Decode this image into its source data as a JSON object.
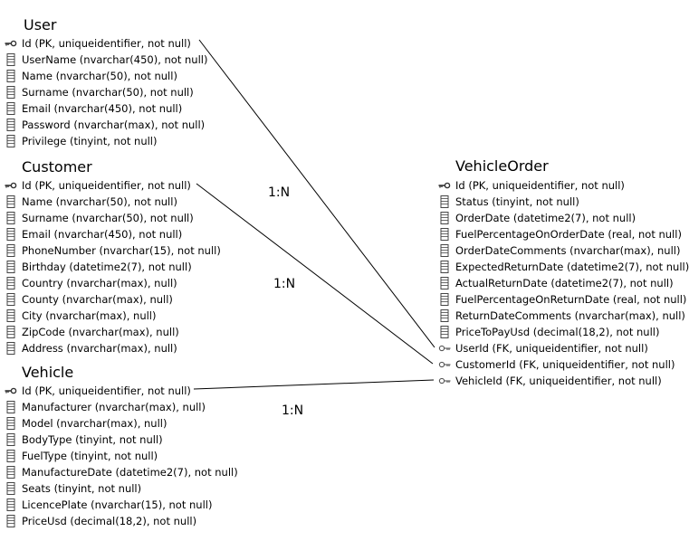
{
  "entities": {
    "user": {
      "title": "User",
      "fields": [
        {
          "text": "Id (PK, uniqueidentifier, not null)",
          "icon": "key-icon"
        },
        {
          "text": "UserName (nvarchar(450), not null)",
          "icon": "column-icon"
        },
        {
          "text": "Name (nvarchar(50), not null)",
          "icon": "column-icon"
        },
        {
          "text": "Surname (nvarchar(50), not null)",
          "icon": "column-icon"
        },
        {
          "text": "Email (nvarchar(450), not null)",
          "icon": "column-icon"
        },
        {
          "text": "Password (nvarchar(max), not null)",
          "icon": "column-icon"
        },
        {
          "text": "Privilege (tinyint, not null)",
          "icon": "column-icon"
        }
      ]
    },
    "customer": {
      "title": "Customer",
      "fields": [
        {
          "text": "Id (PK, uniqueidentifier, not null)",
          "icon": "key-icon"
        },
        {
          "text": "Name (nvarchar(50), not null)",
          "icon": "column-icon"
        },
        {
          "text": "Surname (nvarchar(50), not null)",
          "icon": "column-icon"
        },
        {
          "text": "Email (nvarchar(450), not null)",
          "icon": "column-icon"
        },
        {
          "text": "PhoneNumber (nvarchar(15), not null)",
          "icon": "column-icon"
        },
        {
          "text": "Birthday (datetime2(7), not null)",
          "icon": "column-icon"
        },
        {
          "text": "Country (nvarchar(max), null)",
          "icon": "column-icon"
        },
        {
          "text": "County (nvarchar(max), null)",
          "icon": "column-icon"
        },
        {
          "text": "City (nvarchar(max), null)",
          "icon": "column-icon"
        },
        {
          "text": "ZipCode (nvarchar(max), null)",
          "icon": "column-icon"
        },
        {
          "text": "Address (nvarchar(max), null)",
          "icon": "column-icon"
        }
      ]
    },
    "vehicle": {
      "title": "Vehicle",
      "fields": [
        {
          "text": "Id (PK, uniqueidentifier, not null)",
          "icon": "key-icon"
        },
        {
          "text": "Manufacturer (nvarchar(max), null)",
          "icon": "column-icon"
        },
        {
          "text": "Model (nvarchar(max), null)",
          "icon": "column-icon"
        },
        {
          "text": "BodyType (tinyint, not null)",
          "icon": "column-icon"
        },
        {
          "text": "FuelType (tinyint, not null)",
          "icon": "column-icon"
        },
        {
          "text": "ManufactureDate (datetime2(7), not null)",
          "icon": "column-icon"
        },
        {
          "text": "Seats (tinyint, not null)",
          "icon": "column-icon"
        },
        {
          "text": "LicencePlate (nvarchar(15), not null)",
          "icon": "column-icon"
        },
        {
          "text": "PriceUsd (decimal(18,2), not null)",
          "icon": "column-icon"
        }
      ]
    },
    "vehicle_order": {
      "title": "VehicleOrder",
      "fields": [
        {
          "text": "Id (PK, uniqueidentifier, not null)",
          "icon": "key-icon"
        },
        {
          "text": "Status (tinyint, not null)",
          "icon": "column-icon"
        },
        {
          "text": "OrderDate (datetime2(7), not null)",
          "icon": "column-icon"
        },
        {
          "text": "FuelPercentageOnOrderDate (real, not null)",
          "icon": "column-icon"
        },
        {
          "text": "OrderDateComments (nvarchar(max), null)",
          "icon": "column-icon"
        },
        {
          "text": "ExpectedReturnDate (datetime2(7), not null)",
          "icon": "column-icon"
        },
        {
          "text": "ActualReturnDate (datetime2(7), not null)",
          "icon": "column-icon"
        },
        {
          "text": "FuelPercentageOnReturnDate (real, not null)",
          "icon": "column-icon"
        },
        {
          "text": "ReturnDateComments (nvarchar(max), null)",
          "icon": "column-icon"
        },
        {
          "text": "PriceToPayUsd (decimal(18,2), not null)",
          "icon": "column-icon"
        },
        {
          "text": "UserId (FK, uniqueidentifier, not null)",
          "icon": "foreign-key-icon"
        },
        {
          "text": "CustomerId (FK, uniqueidentifier, not null)",
          "icon": "foreign-key-icon"
        },
        {
          "text": "VehicleId (FK, uniqueidentifier, not null)",
          "icon": "foreign-key-icon"
        }
      ]
    }
  },
  "relationships": [
    {
      "label": "1:N",
      "from": "user",
      "to": "vehicle_order",
      "to_field": "UserId"
    },
    {
      "label": "1:N",
      "from": "customer",
      "to": "vehicle_order",
      "to_field": "CustomerId"
    },
    {
      "label": "1:N",
      "from": "vehicle",
      "to": "vehicle_order",
      "to_field": "VehicleId"
    }
  ]
}
